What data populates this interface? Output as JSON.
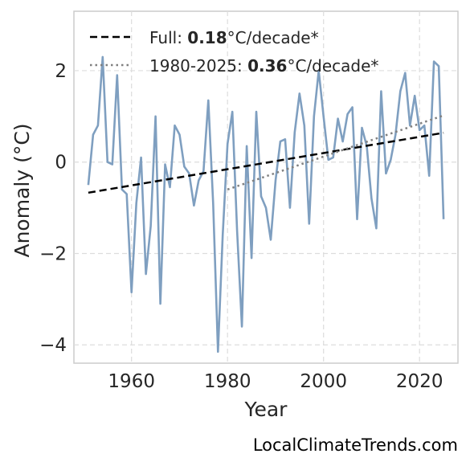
{
  "chart_data": {
    "type": "line",
    "xlabel": "Year",
    "ylabel": "Anomaly (°C)",
    "xlim": [
      1948,
      2028
    ],
    "ylim": [
      -4.4,
      3.3
    ],
    "xticks": [
      1960,
      1980,
      2000,
      2020
    ],
    "yticks": [
      -4,
      -2,
      0,
      2
    ],
    "ytick_labels": [
      "−4",
      "−2",
      "0",
      "2"
    ],
    "grid": true,
    "legend_position": "top-left",
    "colors": {
      "series": "#7f9fc0",
      "full_trend": "#000000",
      "recent_trend": "#808080"
    },
    "series": [
      {
        "x": [
          1951,
          1952,
          1953,
          1954,
          1955,
          1956,
          1957,
          1958,
          1959,
          1960,
          1961,
          1962,
          1963,
          1964,
          1965,
          1966,
          1967,
          1968,
          1969,
          1970,
          1971,
          1972,
          1973,
          1974,
          1975,
          1976,
          1977,
          1978,
          1979,
          1980,
          1981,
          1982,
          1983,
          1984,
          1985,
          1986,
          1987,
          1988,
          1989,
          1990,
          1991,
          1992,
          1993,
          1994,
          1995,
          1996,
          1997,
          1998,
          1999,
          2000,
          2001,
          2002,
          2003,
          2004,
          2005,
          2006,
          2007,
          2008,
          2009,
          2010,
          2011,
          2012,
          2013,
          2014,
          2015,
          2016,
          2017,
          2018,
          2019,
          2020,
          2021,
          2022,
          2023,
          2024,
          2025
        ],
        "y": [
          -0.5,
          0.6,
          0.8,
          2.3,
          0.0,
          -0.05,
          1.9,
          -0.6,
          -0.7,
          -2.85,
          -0.9,
          0.1,
          -2.45,
          -1.4,
          1.0,
          -3.1,
          -0.05,
          -0.55,
          0.8,
          0.6,
          -0.1,
          -0.25,
          -0.95,
          -0.4,
          -0.2,
          1.35,
          -0.9,
          -4.15,
          -1.6,
          0.4,
          1.1,
          -1.5,
          -3.6,
          0.35,
          -2.1,
          1.1,
          -0.75,
          -1.0,
          -1.7,
          -0.4,
          0.45,
          0.5,
          -1.0,
          0.65,
          1.5,
          0.8,
          -1.35,
          1.0,
          2.0,
          1.0,
          0.05,
          0.1,
          0.95,
          0.45,
          1.05,
          1.2,
          -1.25,
          0.75,
          0.35,
          -0.8,
          -1.45,
          1.55,
          -0.25,
          0.05,
          0.6,
          1.55,
          1.95,
          0.8,
          1.45,
          0.7,
          0.8,
          -0.3,
          2.2,
          2.1,
          -1.25
        ]
      }
    ],
    "trends": [
      {
        "style": "dashed",
        "label_prefix": "Full: ",
        "label_value": "0.18",
        "label_suffix": "°C/decade*",
        "x": [
          1951,
          2025
        ],
        "y": [
          -0.67,
          0.64
        ]
      },
      {
        "style": "dotted",
        "label_prefix": "1980-2025: ",
        "label_value": "0.36",
        "label_suffix": "°C/decade*",
        "x": [
          1980,
          2025
        ],
        "y": [
          -0.6,
          1.02
        ]
      }
    ]
  },
  "watermark": "LocalClimateTrends.com"
}
